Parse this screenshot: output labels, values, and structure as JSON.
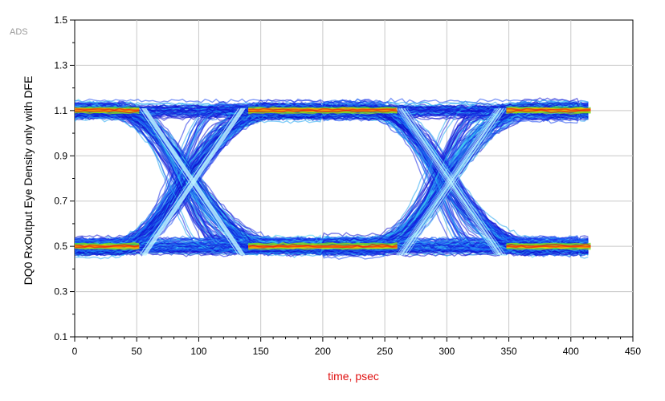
{
  "watermark": "ADS",
  "chart_data": {
    "type": "eye-density",
    "title": "",
    "xlabel": "time, psec",
    "ylabel": "DQ0 RxOutput Eye Density only with DFE",
    "xlim": [
      0,
      450
    ],
    "ylim": [
      0.1,
      1.5
    ],
    "xticks": [
      0,
      50,
      100,
      150,
      200,
      250,
      300,
      350,
      400,
      450
    ],
    "yticks": [
      0.1,
      0.3,
      0.5,
      0.7,
      0.9,
      1.1,
      1.3,
      1.5
    ],
    "grid": true,
    "data_range_x": [
      0,
      416
    ],
    "unit_interval_psec": 208,
    "crossings": [
      {
        "x": 95,
        "y": 0.78
      },
      {
        "x": 303,
        "y": 0.78
      }
    ],
    "high_level": 1.1,
    "low_level": 0.5,
    "high_band": [
      1.04,
      1.14
    ],
    "low_band": [
      0.43,
      0.56
    ],
    "overshoot_max": 1.26,
    "undershoot_min": 0.32,
    "eye_opening": {
      "x": [
        130,
        265
      ],
      "y": [
        0.6,
        1.0
      ]
    },
    "colors": {
      "low_density": "#1020dc",
      "mid_density": "#18b4f0",
      "high_density": "#ff8a00",
      "peak_density": "#e81010",
      "accent": "#46e038"
    }
  }
}
